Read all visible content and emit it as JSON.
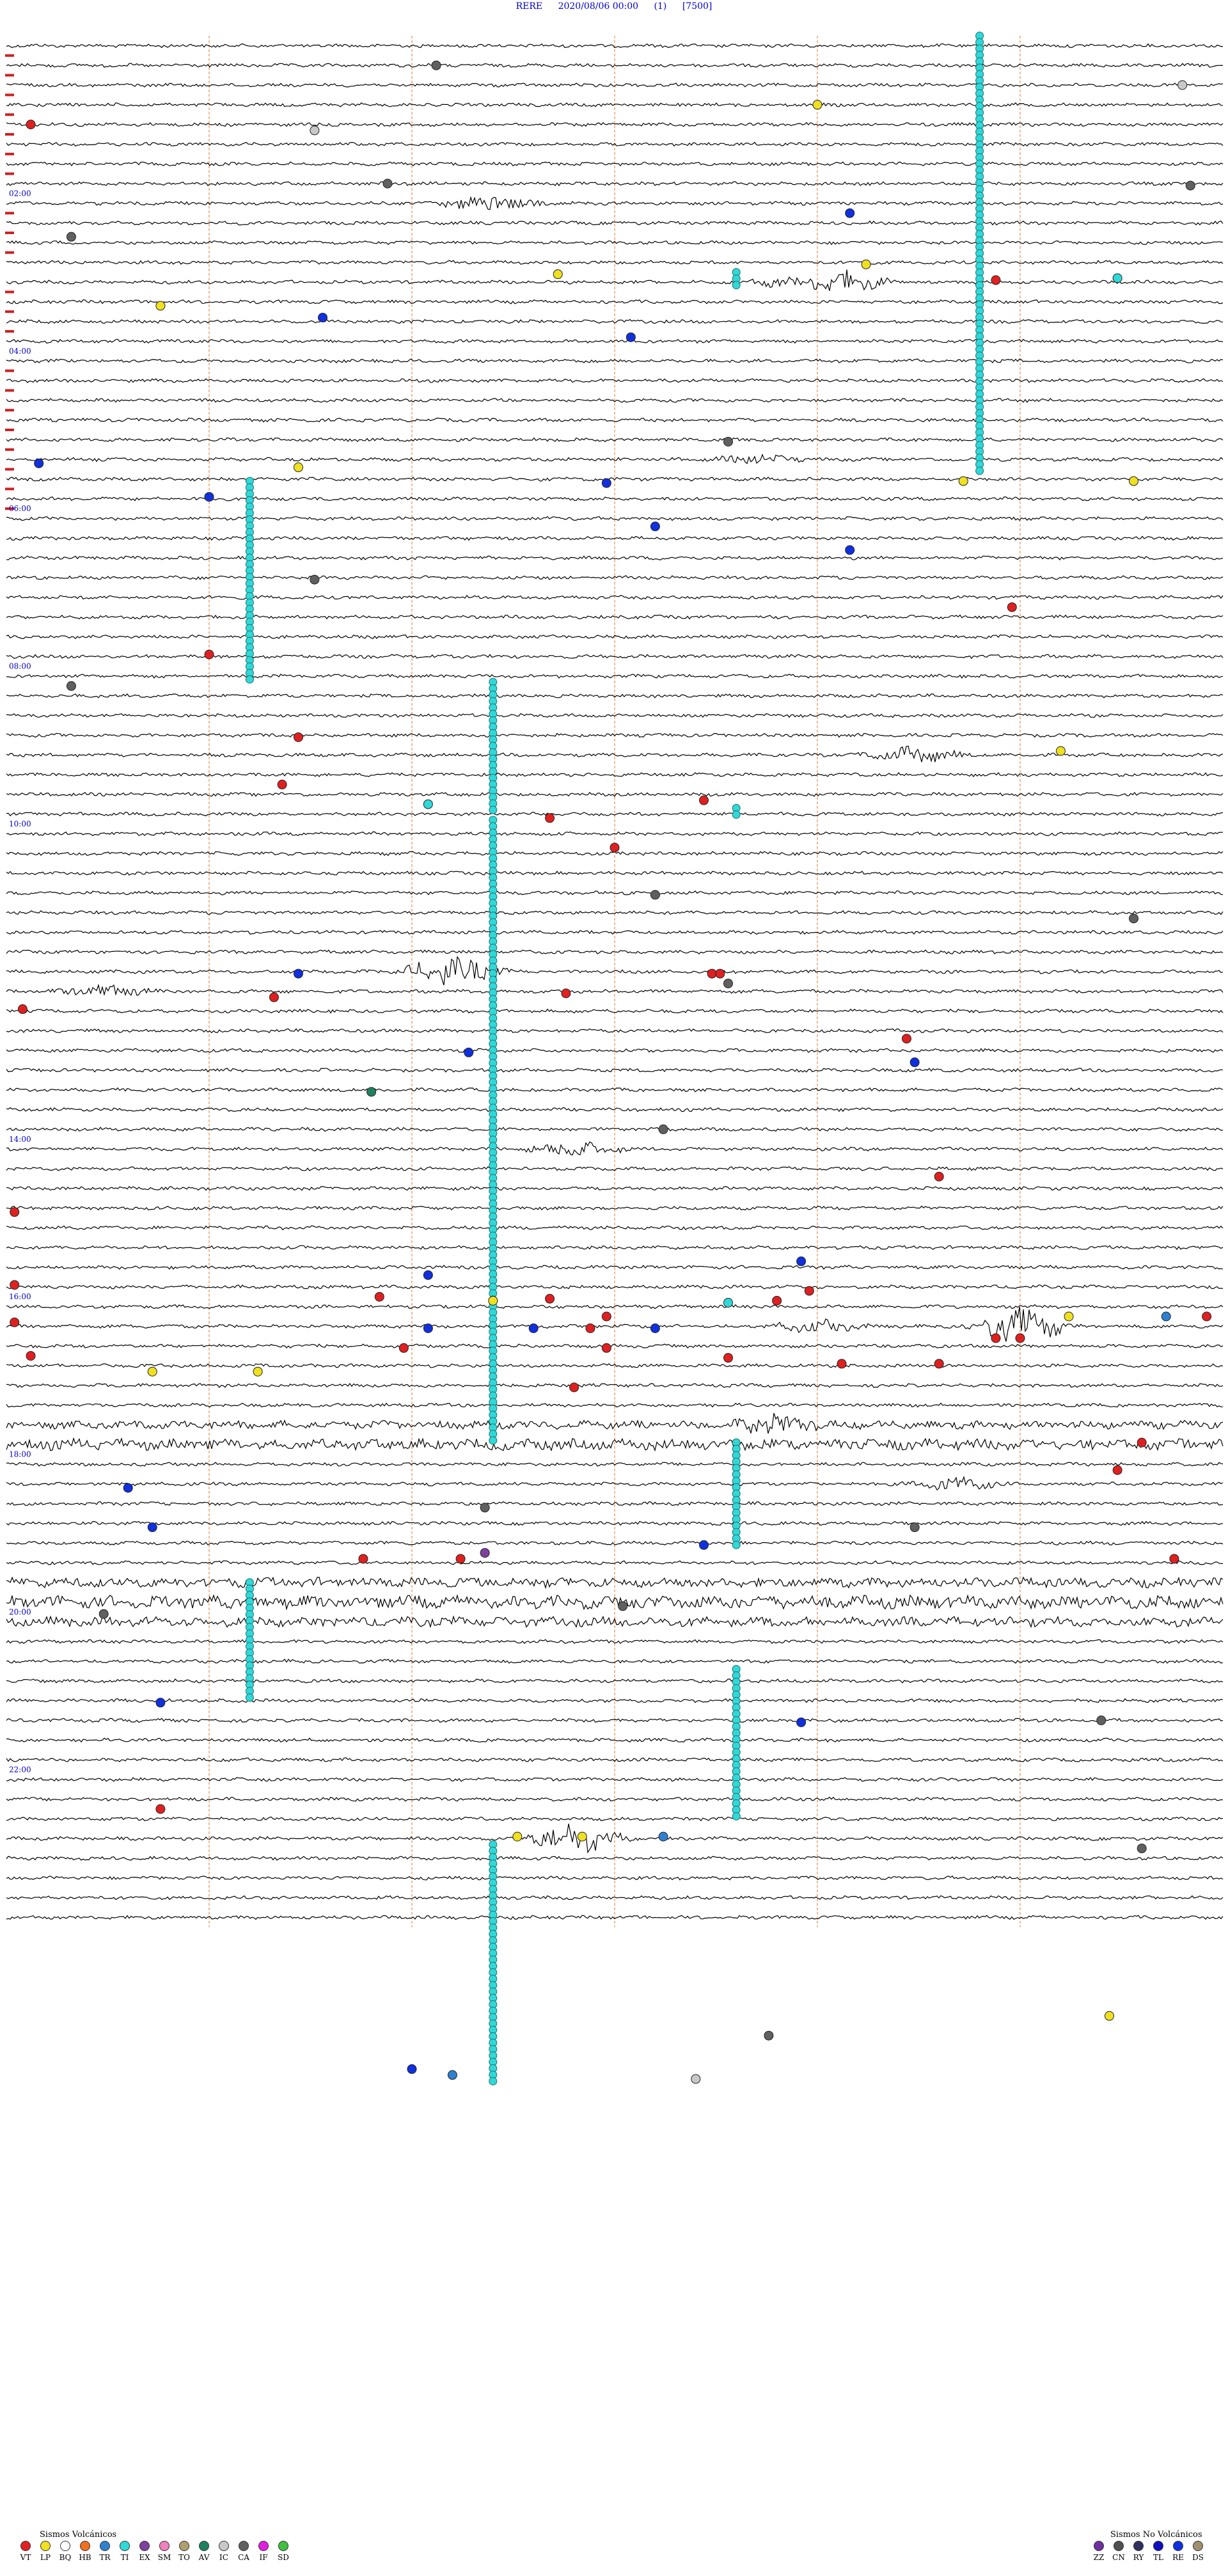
{
  "header": {
    "station": "RERE",
    "datetime": "2020/08/06 00:00",
    "channel": "(1)",
    "gain": "[7500]"
  },
  "chart_data": {
    "type": "line",
    "title": "RERE 2020/08/06 00:00 (1) [7500]",
    "rows": 96,
    "minutes_per_row": 15,
    "time_labels": [
      {
        "row": 8,
        "label": "02:00"
      },
      {
        "row": 16,
        "label": "04:00"
      },
      {
        "row": 24,
        "label": "06:00"
      },
      {
        "row": 32,
        "label": "08:00"
      },
      {
        "row": 40,
        "label": "10:00"
      },
      {
        "row": 56,
        "label": "14:00"
      },
      {
        "row": 64,
        "label": "16:00"
      },
      {
        "row": 72,
        "label": "18:00"
      },
      {
        "row": 80,
        "label": "20:00"
      },
      {
        "row": 88,
        "label": "22:00"
      }
    ],
    "hour_markers": [
      1,
      2,
      3,
      4,
      5,
      6,
      7,
      9,
      10,
      11,
      13,
      14,
      15,
      17,
      18,
      19,
      20,
      21,
      22,
      23,
      24
    ],
    "minute_gridlines": [
      2.5,
      5,
      7.5,
      10,
      12.5
    ],
    "noisy_rows": [
      {
        "row": 70,
        "amp": 5
      },
      {
        "row": 71,
        "amp": 7
      },
      {
        "row": 78,
        "amp": 6
      },
      {
        "row": 79,
        "amp": 8
      },
      {
        "row": 80,
        "amp": 6
      }
    ],
    "bursts": [
      {
        "row": 8,
        "min": 6,
        "amp": 12
      },
      {
        "row": 12,
        "min": 10.3,
        "amp": 14
      },
      {
        "row": 12,
        "min": 9.6,
        "amp": 6
      },
      {
        "row": 21,
        "min": 9.3,
        "amp": 6
      },
      {
        "row": 36,
        "min": 11.2,
        "amp": 10
      },
      {
        "row": 47,
        "min": 5.5,
        "amp": 20
      },
      {
        "row": 48,
        "min": 1.2,
        "amp": 8
      },
      {
        "row": 56,
        "min": 7,
        "amp": 10
      },
      {
        "row": 65,
        "min": 12.5,
        "amp": 22
      },
      {
        "row": 65,
        "min": 10,
        "amp": 8
      },
      {
        "row": 70,
        "min": 9.5,
        "amp": 16
      },
      {
        "row": 73,
        "min": 11.7,
        "amp": 8
      },
      {
        "row": 91,
        "min": 7,
        "amp": 20
      }
    ],
    "columns": [
      {
        "min": 12.0,
        "rows": [
          0,
          22.2
        ]
      },
      {
        "min": 3.0,
        "rows": [
          22.6,
          32.8
        ]
      },
      {
        "min": 6.0,
        "rows": [
          32.8,
          39.4
        ]
      },
      {
        "min": 6.0,
        "rows": [
          39.8,
          71.4
        ]
      },
      {
        "min": 9.0,
        "rows": [
          71.4,
          76.8
        ]
      },
      {
        "min": 3.0,
        "rows": [
          78.5,
          84.4
        ]
      },
      {
        "min": 9.0,
        "rows": [
          82.9,
          90.6
        ]
      },
      {
        "min": 6.0,
        "rows": [
          91.8,
          104
        ]
      },
      {
        "min": 9.0,
        "rows": [
          12,
          12.8
        ]
      },
      {
        "min": 9.0,
        "rows": [
          39.2,
          39.6
        ]
      }
    ],
    "events": [
      {
        "row": 1.5,
        "min": 5.3,
        "type": "CA"
      },
      {
        "row": 2.5,
        "min": 14.5,
        "type": "IC"
      },
      {
        "row": 3.5,
        "min": 10.0,
        "type": "LP"
      },
      {
        "row": 4.5,
        "min": 0.3,
        "type": "VT"
      },
      {
        "row": 4.8,
        "min": 3.8,
        "type": "IC"
      },
      {
        "row": 7.5,
        "min": 4.7,
        "type": "CA"
      },
      {
        "row": 7.6,
        "min": 14.6,
        "type": "CA"
      },
      {
        "row": 9.0,
        "min": 10.4,
        "type": "RE"
      },
      {
        "row": 10.2,
        "min": 0.8,
        "type": "CA"
      },
      {
        "row": 11.6,
        "min": 10.6,
        "type": "LP"
      },
      {
        "row": 12.1,
        "min": 6.8,
        "type": "LP"
      },
      {
        "row": 12.3,
        "min": 13.7,
        "type": "TI"
      },
      {
        "row": 12.4,
        "min": 12.2,
        "type": "VT"
      },
      {
        "row": 13.7,
        "min": 1.9,
        "type": "LP"
      },
      {
        "row": 14.3,
        "min": 3.9,
        "type": "RE"
      },
      {
        "row": 15.3,
        "min": 7.7,
        "type": "RE"
      },
      {
        "row": 20.6,
        "min": 8.9,
        "type": "CA"
      },
      {
        "row": 21.7,
        "min": 0.4,
        "type": "RE"
      },
      {
        "row": 21.9,
        "min": 3.6,
        "type": "LP"
      },
      {
        "row": 22.6,
        "min": 11.8,
        "type": "LP"
      },
      {
        "row": 22.6,
        "min": 13.9,
        "type": "LP"
      },
      {
        "row": 22.7,
        "min": 7.4,
        "type": "RE"
      },
      {
        "row": 23.4,
        "min": 2.5,
        "type": "RE"
      },
      {
        "row": 24.9,
        "min": 8.0,
        "type": "RE"
      },
      {
        "row": 26.1,
        "min": 10.4,
        "type": "RE"
      },
      {
        "row": 27.6,
        "min": 3.8,
        "type": "CA"
      },
      {
        "row": 29.0,
        "min": 12.4,
        "type": "VT"
      },
      {
        "row": 31.4,
        "min": 2.5,
        "type": "VT"
      },
      {
        "row": 33.0,
        "min": 0.8,
        "type": "CA"
      },
      {
        "row": 35.6,
        "min": 3.6,
        "type": "VT"
      },
      {
        "row": 36.3,
        "min": 13.0,
        "type": "LP"
      },
      {
        "row": 38.0,
        "min": 3.4,
        "type": "VT"
      },
      {
        "row": 38.8,
        "min": 8.6,
        "type": "VT"
      },
      {
        "row": 39.7,
        "min": 6.7,
        "type": "VT"
      },
      {
        "row": 39.0,
        "min": 5.2,
        "type": "TI"
      },
      {
        "row": 41.2,
        "min": 7.5,
        "type": "VT"
      },
      {
        "row": 43.6,
        "min": 8.0,
        "type": "CA"
      },
      {
        "row": 44.8,
        "min": 13.9,
        "type": "CA"
      },
      {
        "row": 47.6,
        "min": 3.6,
        "type": "RE"
      },
      {
        "row": 47.6,
        "min": 8.7,
        "type": "VT"
      },
      {
        "row": 47.6,
        "min": 8.8,
        "type": "VT"
      },
      {
        "row": 48.1,
        "min": 8.9,
        "type": "CA"
      },
      {
        "row": 48.6,
        "min": 6.9,
        "type": "VT"
      },
      {
        "row": 48.8,
        "min": 3.3,
        "type": "VT"
      },
      {
        "row": 49.4,
        "min": 0.2,
        "type": "VT"
      },
      {
        "row": 50.9,
        "min": 11.1,
        "type": "VT"
      },
      {
        "row": 51.6,
        "min": 5.7,
        "type": "RE"
      },
      {
        "row": 52.1,
        "min": 11.2,
        "type": "RE"
      },
      {
        "row": 53.6,
        "min": 4.5,
        "type": "AV"
      },
      {
        "row": 55.5,
        "min": 8.1,
        "type": "CA"
      },
      {
        "row": 57.9,
        "min": 11.5,
        "type": "VT"
      },
      {
        "row": 59.7,
        "min": 0.1,
        "type": "VT"
      },
      {
        "row": 62.2,
        "min": 9.8,
        "type": "RE"
      },
      {
        "row": 62.9,
        "min": 5.2,
        "type": "RE"
      },
      {
        "row": 63.4,
        "min": 0.1,
        "type": "VT"
      },
      {
        "row": 63.7,
        "min": 9.9,
        "type": "VT"
      },
      {
        "row": 64.0,
        "min": 4.6,
        "type": "VT"
      },
      {
        "row": 64.1,
        "min": 6.7,
        "type": "VT"
      },
      {
        "row": 64.2,
        "min": 9.5,
        "type": "VT"
      },
      {
        "row": 64.2,
        "min": 6.0,
        "type": "LP"
      },
      {
        "row": 64.3,
        "min": 8.9,
        "type": "TI"
      },
      {
        "row": 65.0,
        "min": 7.4,
        "type": "VT"
      },
      {
        "row": 65.0,
        "min": 14.8,
        "type": "VT"
      },
      {
        "row": 65.0,
        "min": 13.1,
        "type": "LP"
      },
      {
        "row": 65.0,
        "min": 14.3,
        "type": "TR"
      },
      {
        "row": 65.3,
        "min": 0.1,
        "type": "VT"
      },
      {
        "row": 65.6,
        "min": 5.2,
        "type": "RE"
      },
      {
        "row": 65.6,
        "min": 6.5,
        "type": "RE"
      },
      {
        "row": 65.6,
        "min": 7.2,
        "type": "VT"
      },
      {
        "row": 65.6,
        "min": 8.0,
        "type": "RE"
      },
      {
        "row": 66.1,
        "min": 12.2,
        "type": "VT"
      },
      {
        "row": 66.1,
        "min": 12.5,
        "type": "VT"
      },
      {
        "row": 66.6,
        "min": 4.9,
        "type": "VT"
      },
      {
        "row": 66.6,
        "min": 7.4,
        "type": "VT"
      },
      {
        "row": 67.0,
        "min": 0.3,
        "type": "VT"
      },
      {
        "row": 67.1,
        "min": 8.9,
        "type": "VT"
      },
      {
        "row": 67.4,
        "min": 11.5,
        "type": "VT"
      },
      {
        "row": 67.4,
        "min": 10.3,
        "type": "VT"
      },
      {
        "row": 67.8,
        "min": 1.8,
        "type": "LP"
      },
      {
        "row": 67.8,
        "min": 3.1,
        "type": "LP"
      },
      {
        "row": 68.6,
        "min": 7.0,
        "type": "VT"
      },
      {
        "row": 71.4,
        "min": 14.0,
        "type": "VT"
      },
      {
        "row": 72.8,
        "min": 13.7,
        "type": "VT"
      },
      {
        "row": 73.7,
        "min": 1.5,
        "type": "RE"
      },
      {
        "row": 74.7,
        "min": 5.9,
        "type": "CA"
      },
      {
        "row": 75.7,
        "min": 1.8,
        "type": "RE"
      },
      {
        "row": 75.7,
        "min": 11.2,
        "type": "CA"
      },
      {
        "row": 76.6,
        "min": 8.6,
        "type": "RE"
      },
      {
        "row": 77.0,
        "min": 5.9,
        "type": "EX"
      },
      {
        "row": 77.3,
        "min": 4.4,
        "type": "VT"
      },
      {
        "row": 77.3,
        "min": 5.6,
        "type": "VT"
      },
      {
        "row": 77.3,
        "min": 14.4,
        "type": "VT"
      },
      {
        "row": 79.7,
        "min": 7.6,
        "type": "CA"
      },
      {
        "row": 80.1,
        "min": 1.2,
        "type": "CA"
      },
      {
        "row": 84.6,
        "min": 1.9,
        "type": "RE"
      },
      {
        "row": 85.6,
        "min": 9.8,
        "type": "RE"
      },
      {
        "row": 85.5,
        "min": 13.5,
        "type": "CA"
      },
      {
        "row": 90.0,
        "min": 1.9,
        "type": "VT"
      },
      {
        "row": 91.4,
        "min": 6.3,
        "type": "LP"
      },
      {
        "row": 91.4,
        "min": 7.1,
        "type": "LP"
      },
      {
        "row": 91.4,
        "min": 8.1,
        "type": "TR"
      },
      {
        "row": 92.0,
        "min": 14.0,
        "type": "CA"
      },
      {
        "row": 100.5,
        "min": 13.6,
        "type": "LP"
      },
      {
        "row": 101.5,
        "min": 9.4,
        "type": "CA"
      },
      {
        "row": 103.2,
        "min": 5.0,
        "type": "RE"
      },
      {
        "row": 103.5,
        "min": 5.5,
        "type": "TR"
      },
      {
        "row": 103.7,
        "min": 8.5,
        "type": "IC"
      }
    ]
  },
  "legend_volcanic": {
    "title": "Sismos Volcánicos",
    "items": [
      {
        "label": "VT",
        "color": "#e02020"
      },
      {
        "label": "LP",
        "color": "#f0e020"
      },
      {
        "label": "BQ",
        "color": "#ffffff"
      },
      {
        "label": "HB",
        "color": "#f07020"
      },
      {
        "label": "TR",
        "color": "#3080d0"
      },
      {
        "label": "TI",
        "color": "#30d8d8"
      },
      {
        "label": "EX",
        "color": "#8040a0"
      },
      {
        "label": "SM",
        "color": "#f080c0"
      },
      {
        "label": "TO",
        "color": "#b0a070"
      },
      {
        "label": "AV",
        "color": "#208060"
      },
      {
        "label": "IC",
        "color": "#c8c8c8"
      },
      {
        "label": "CA",
        "color": "#606060"
      },
      {
        "label": "IF",
        "color": "#e020e0"
      },
      {
        "label": "SD",
        "color": "#40c040"
      }
    ]
  },
  "legend_nonvolcanic": {
    "title": "Sismos No Volcánicos",
    "items": [
      {
        "label": "ZZ",
        "color": "#7030a0"
      },
      {
        "label": "CN",
        "color": "#505050"
      },
      {
        "label": "RY",
        "color": "#303060"
      },
      {
        "label": "TL",
        "color": "#1010c0"
      },
      {
        "label": "RE",
        "color": "#1030e0"
      },
      {
        "label": "DS",
        "color": "#a09070"
      }
    ]
  }
}
